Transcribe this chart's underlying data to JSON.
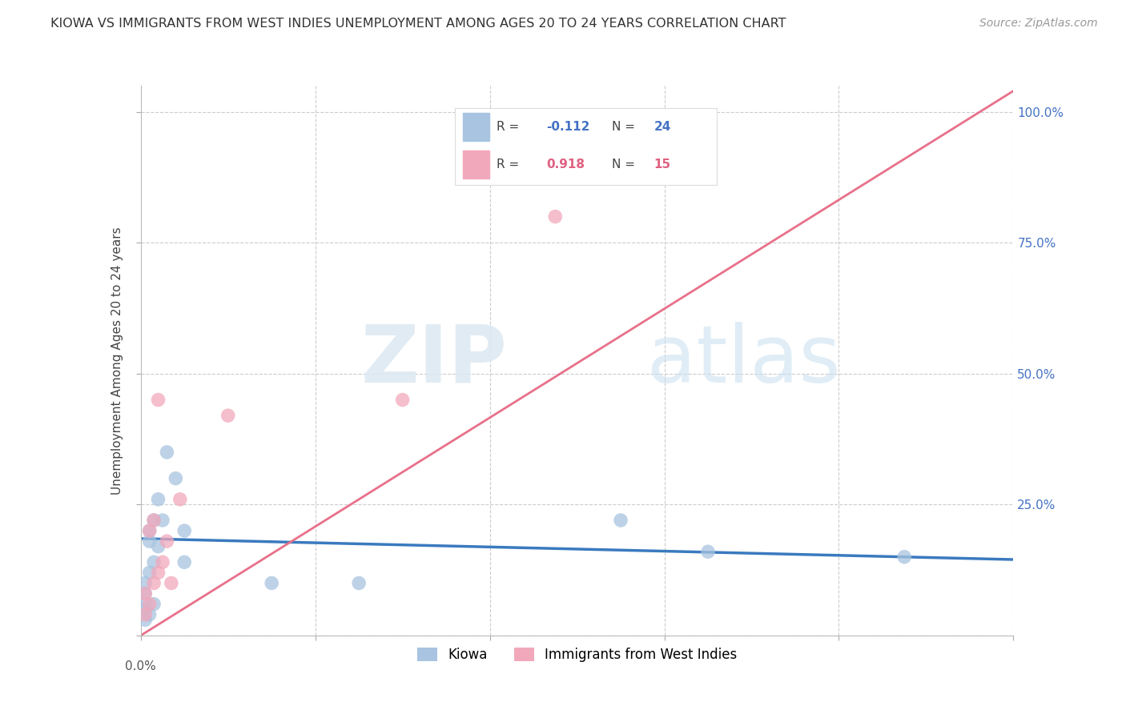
{
  "title": "KIOWA VS IMMIGRANTS FROM WEST INDIES UNEMPLOYMENT AMONG AGES 20 TO 24 YEARS CORRELATION CHART",
  "source": "Source: ZipAtlas.com",
  "ylabel": "Unemployment Among Ages 20 to 24 years",
  "xlim": [
    0.0,
    0.2
  ],
  "ylim": [
    0.0,
    1.05
  ],
  "yticks": [
    0.0,
    0.25,
    0.5,
    0.75,
    1.0
  ],
  "xticks": [
    0.0,
    0.04,
    0.08,
    0.12,
    0.16,
    0.2
  ],
  "watermark_zip": "ZIP",
  "watermark_atlas": "atlas",
  "kiowa_color": "#a8c4e0",
  "wi_color": "#f2a8bb",
  "kiowa_line_color": "#3a7abf",
  "wi_line_color": "#e8708a",
  "kiowa_R": -0.112,
  "kiowa_N": 24,
  "wi_R": 0.918,
  "wi_N": 15,
  "kiowa_points_x": [
    0.001,
    0.001,
    0.001,
    0.001,
    0.001,
    0.002,
    0.002,
    0.002,
    0.002,
    0.003,
    0.003,
    0.003,
    0.004,
    0.004,
    0.005,
    0.006,
    0.008,
    0.01,
    0.01,
    0.03,
    0.05,
    0.11,
    0.13,
    0.175
  ],
  "kiowa_points_y": [
    0.03,
    0.05,
    0.06,
    0.08,
    0.1,
    0.04,
    0.12,
    0.18,
    0.2,
    0.06,
    0.14,
    0.22,
    0.17,
    0.26,
    0.22,
    0.35,
    0.3,
    0.2,
    0.14,
    0.1,
    0.1,
    0.22,
    0.16,
    0.15
  ],
  "wi_points_x": [
    0.001,
    0.001,
    0.002,
    0.002,
    0.003,
    0.003,
    0.004,
    0.004,
    0.005,
    0.006,
    0.007,
    0.009,
    0.02,
    0.06,
    0.095
  ],
  "wi_points_y": [
    0.04,
    0.08,
    0.06,
    0.2,
    0.1,
    0.22,
    0.12,
    0.45,
    0.14,
    0.18,
    0.1,
    0.26,
    0.42,
    0.45,
    0.8
  ],
  "kiowa_line_x": [
    0.0,
    0.2
  ],
  "kiowa_line_y": [
    0.185,
    0.145
  ],
  "wi_line_x": [
    0.0,
    0.2
  ],
  "wi_line_y": [
    0.0,
    1.04
  ],
  "grid_color": "#cccccc",
  "bg_color": "#ffffff",
  "right_label_color": "#4472c4",
  "title_color": "#333333",
  "legend_label_color": "#555555"
}
